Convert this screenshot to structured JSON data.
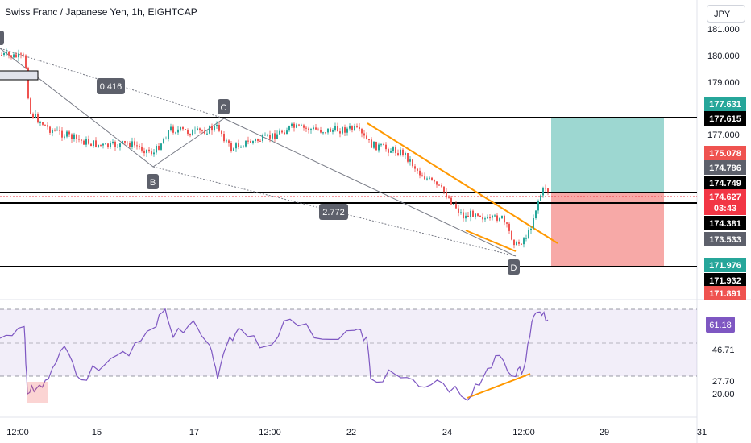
{
  "header": {
    "title": "Swiss Franc / Japanese Yen, 1h, EIGHTCAP",
    "currency": "JPY"
  },
  "price_axis": {
    "ticks": [
      "181.000",
      "180.000",
      "179.000",
      "177.000"
    ]
  },
  "price_labels": [
    {
      "text": "177.631",
      "bg": "#26a69a"
    },
    {
      "text": "177.615",
      "bg": "#000000"
    },
    {
      "text": "175.078",
      "bg": "#ef5350"
    },
    {
      "text": "174.786",
      "bg": "#5d606b"
    },
    {
      "text": "174.749",
      "bg": "#000000"
    },
    {
      "text": "174.627",
      "bg": "#f23645"
    },
    {
      "text": "03:43",
      "bg": "#f23645"
    },
    {
      "text": "174.381",
      "bg": "#000000"
    },
    {
      "text": "173.533",
      "bg": "#5d606b"
    },
    {
      "text": "171.976",
      "bg": "#26a69a"
    },
    {
      "text": "171.932",
      "bg": "#000000"
    },
    {
      "text": "171.891",
      "bg": "#ef5350"
    }
  ],
  "pattern": {
    "points": [
      "B",
      "C",
      "D"
    ],
    "ratios": [
      "0.416",
      "2.772"
    ]
  },
  "rsi": {
    "value": "61.18",
    "ticks": [
      "46.71",
      "27.70",
      "20.00"
    ]
  },
  "time_axis": {
    "ticks": [
      "12:00",
      "15",
      "17",
      "12:00",
      "22",
      "24",
      "12:00",
      "29",
      "31"
    ]
  },
  "colors": {
    "up": "#26a69a",
    "down": "#ef5350",
    "rsi_line": "#7e57c2",
    "trendline": "#ff9800"
  }
}
